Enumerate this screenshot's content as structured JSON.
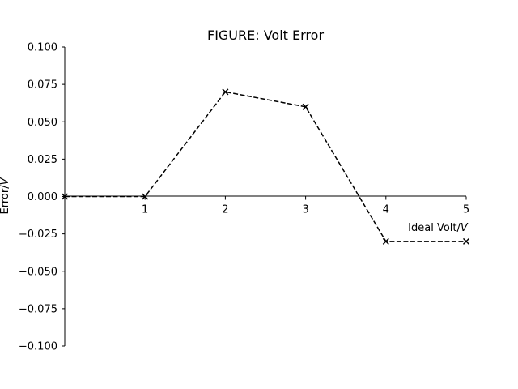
{
  "chart_data": {
    "type": "line",
    "title": "FIGURE: Volt Error",
    "xlabel": "Ideal Volt/",
    "xlabel_unit": "V",
    "ylabel": "Error/",
    "ylabel_unit": "V",
    "xlim": [
      0,
      5
    ],
    "ylim": [
      -0.1,
      0.1
    ],
    "x_ticks": [
      "1",
      "2",
      "3",
      "4",
      "5"
    ],
    "y_ticks": [
      "0.100",
      "0.075",
      "0.050",
      "0.025",
      "0.000",
      "−0.025",
      "−0.050",
      "−0.075",
      "−0.100"
    ],
    "grid": false,
    "series": [
      {
        "x": [
          0,
          1,
          2,
          3,
          4,
          5
        ],
        "y": [
          0.0,
          0.0,
          0.07,
          0.06,
          -0.03,
          -0.03
        ],
        "color": "#000000",
        "linestyle": "dashed",
        "marker": "x"
      }
    ]
  }
}
